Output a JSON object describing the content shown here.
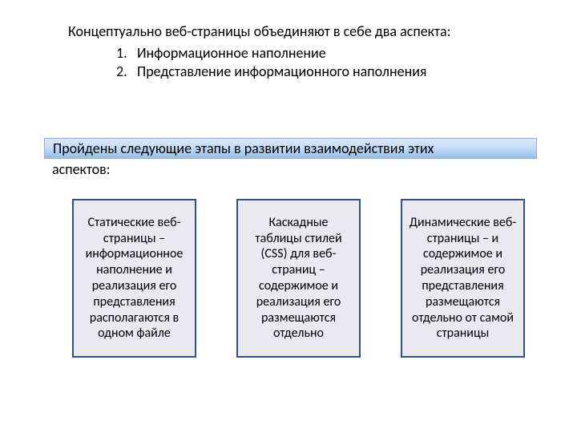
{
  "intro": {
    "lead": "Концептуально веб-страницы объединяют в себе два аспекта:",
    "items": [
      {
        "num": "1.",
        "text": "Информационное наполнение"
      },
      {
        "num": "2.",
        "text": "Представление информационного наполнения"
      }
    ]
  },
  "banner": {
    "line1": "Пройдены следующие этапы в развитии взаимодействия этих",
    "line2": "аспектов:"
  },
  "boxes": [
    {
      "text": "Статические веб-страницы – информационное наполнение и реализация его представления располагаются в одном файле",
      "bg": "#e9e9ef",
      "border": "#2f528f"
    },
    {
      "text": "Каскадные таблицы стилей (CSS) для веб-страниц – содержимое и реализация его размещаются отдельно",
      "bg": "#e9e9ef",
      "border": "#2f528f"
    },
    {
      "text": "Динамические веб-страницы – и содержимое и реализация его представления размещаются отдельно от самой страницы",
      "bg": "#e9e9ef",
      "border": "#2f528f"
    }
  ],
  "style": {
    "page_bg": "#ffffff",
    "text_color": "#000000",
    "banner_gradient_from": "#dbe9fb",
    "banner_gradient_mid": "#c5ddf6",
    "banner_gradient_to": "#97bfe8",
    "banner_border": "#8faadc",
    "body_fontsize": 18,
    "box_fontsize": 16
  }
}
